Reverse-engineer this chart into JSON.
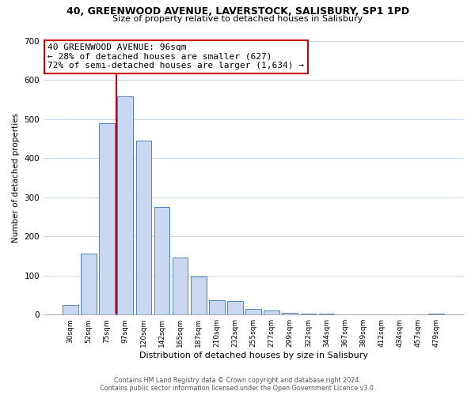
{
  "title": "40, GREENWOOD AVENUE, LAVERSTOCK, SALISBURY, SP1 1PD",
  "subtitle": "Size of property relative to detached houses in Salisbury",
  "xlabel": "Distribution of detached houses by size in Salisbury",
  "ylabel": "Number of detached properties",
  "bar_labels": [
    "30sqm",
    "52sqm",
    "75sqm",
    "97sqm",
    "120sqm",
    "142sqm",
    "165sqm",
    "187sqm",
    "210sqm",
    "232sqm",
    "255sqm",
    "277sqm",
    "299sqm",
    "322sqm",
    "344sqm",
    "367sqm",
    "389sqm",
    "412sqm",
    "434sqm",
    "457sqm",
    "479sqm"
  ],
  "bar_values": [
    25,
    155,
    490,
    558,
    445,
    275,
    145,
    98,
    37,
    35,
    15,
    10,
    5,
    3,
    2,
    1,
    0,
    0,
    0,
    0,
    2
  ],
  "bar_color": "#c8d8f0",
  "bar_edge_color": "#5580b0",
  "vline_x": 2.5,
  "vline_color": "#cc0000",
  "annotation_text": "40 GREENWOOD AVENUE: 96sqm\n← 28% of detached houses are smaller (627)\n72% of semi-detached houses are larger (1,634) →",
  "annotation_box_color": "#ffffff",
  "annotation_box_edge": "#cc0000",
  "ylim": [
    0,
    700
  ],
  "yticks": [
    0,
    100,
    200,
    300,
    400,
    500,
    600,
    700
  ],
  "footer_line1": "Contains HM Land Registry data © Crown copyright and database right 2024.",
  "footer_line2": "Contains public sector information licensed under the Open Government Licence v3.0.",
  "bg_color": "#ffffff",
  "grid_color": "#ccdaeb"
}
